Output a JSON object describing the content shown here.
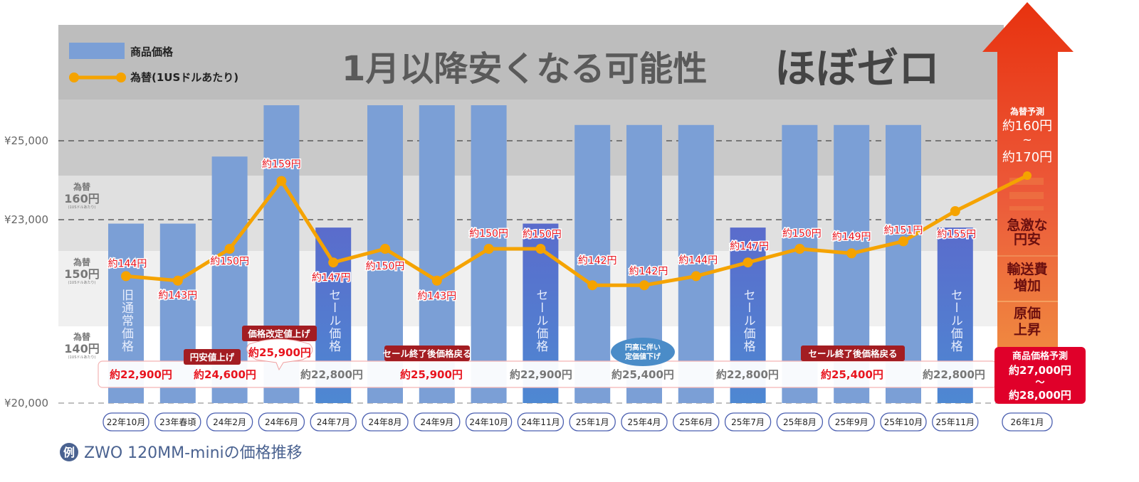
{
  "headline": {
    "part1": "1月以降安くなる可能性",
    "part2": "ほぼゼロ"
  },
  "caption": {
    "badge": "例",
    "text": "ZWO 120MM-miniの価格推移"
  },
  "band_labels": [
    {
      "line1": "為替",
      "line2": "160円",
      "line3": "(1USドルあたり)"
    },
    {
      "line1": "為替",
      "line2": "150円",
      "line3": "(1USドルあたり)"
    },
    {
      "line1": "為替",
      "line2": "140円",
      "line3": "(1USドルあたり)"
    }
  ],
  "bar_labels": {
    "old_regular": "旧通常価格",
    "sale": "セール価格"
  },
  "price_strip": [
    {
      "text": "約22,900円",
      "highlight": true
    },
    {
      "text": "約24,600円",
      "highlight": true
    },
    {
      "text": "約22,800円",
      "highlight": false
    },
    {
      "text": "約25,900円",
      "highlight": true
    },
    {
      "text": "約22,900円",
      "highlight": false
    },
    {
      "text": "約25,400円",
      "highlight": false
    },
    {
      "text": "約22,800円",
      "highlight": false
    },
    {
      "text": "約25,400円",
      "highlight": true
    },
    {
      "text": "約22,800円",
      "highlight": false
    }
  ],
  "annotations": {
    "yen_weak_raise": "円安値上げ",
    "price_revision": "価格改定値上げ",
    "price_revision_value": "約25,900円",
    "sale_end_1": "セール終了後価格戻る",
    "sale_end_2": "セール終了後価格戻る",
    "strong_yen_line1": "円高に伴い",
    "strong_yen_line2": "定価値下げ"
  },
  "forecast": {
    "rate_title": "為替予測",
    "rate_low": "約160円",
    "tilde": "~",
    "rate_high": "約170円",
    "reasons": [
      "急激な",
      "円安",
      "輸送費",
      "増加",
      "原価",
      "上昇"
    ],
    "price_title": "商品価格予測",
    "price_low": "約27,000円",
    "price_tilde": "～",
    "price_high": "約28,000円",
    "category": "26年1月"
  },
  "colors": {
    "bar": "#7b9fd6",
    "sale_bar": "#5570cc",
    "line": "#f5a300",
    "rate_text": "#e8141e",
    "accent_red": "#e0002a",
    "note_red": "#a31d22",
    "caption": "#4a6290"
  },
  "chart_data": {
    "type": "bar+line",
    "legend": {
      "position": "top-left",
      "bar": "商品価格",
      "line": "為替(1USドルあたり)"
    },
    "y_ticks": [
      "¥25,000",
      "¥23,000",
      "¥20,000"
    ],
    "y_tick_values": [
      25000,
      23000,
      20000
    ],
    "grid": "dashed",
    "categories": [
      "22年10月",
      "23年春頃",
      "24年2月",
      "24年6月",
      "24年7月",
      "24年8月",
      "24年9月",
      "24年10月",
      "24年11月",
      "25年1月",
      "25年4月",
      "25年6月",
      "25年7月",
      "25年8月",
      "25年9月",
      "25年10月",
      "25年11月"
    ],
    "series": [
      {
        "name": "商品価格",
        "type": "bar",
        "values": [
          22900,
          22900,
          24600,
          25900,
          22800,
          25900,
          25900,
          25900,
          22900,
          25400,
          25400,
          25400,
          22800,
          25400,
          25400,
          25400,
          22800
        ],
        "sale": [
          false,
          false,
          false,
          false,
          true,
          false,
          false,
          false,
          true,
          false,
          false,
          false,
          true,
          false,
          false,
          false,
          true
        ]
      },
      {
        "name": "為替(1USドルあたり)",
        "type": "line",
        "values": [
          144,
          143,
          150,
          159,
          147,
          150,
          143,
          150,
          150,
          142,
          142,
          144,
          147,
          150,
          149,
          151,
          155
        ],
        "labels": [
          "約144円",
          "約143円",
          "約150円",
          "約159円",
          "約147円",
          "約150円",
          "約143円",
          "約150円",
          "約150円",
          "約142円",
          "約142円",
          "約144円",
          "約147円",
          "約150円",
          "約149円",
          "約151円",
          "約155円"
        ]
      }
    ],
    "forecast_rate_range": [
      160,
      170
    ],
    "forecast_price_range": [
      27000,
      28000
    ]
  }
}
